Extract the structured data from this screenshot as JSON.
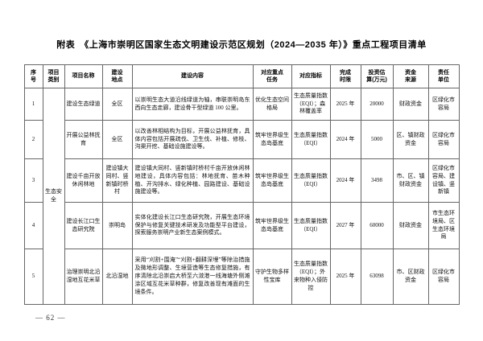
{
  "page": {
    "title": "附表　《上海市崇明区国家生态文明建设示范区规划（2024—2035 年）》重点工程项目清单",
    "page_number": "— 62 —"
  },
  "table": {
    "headers": [
      "序\n号",
      "项目\n类别",
      "项目名称",
      "建设\n地点",
      "建设内容",
      "对应重点\n任务",
      "对应指标",
      "完成\n时限",
      "投资估\n算(万元)",
      "资金\n来源",
      "责任\n单位"
    ],
    "category": "生态安全",
    "rows": [
      {
        "seq": "1",
        "name": "建设生态绿道",
        "location": "全区",
        "content": "以崇明生态大道沿线绿道为轴，串联崇明岛东西向生态走廊，建设骨干型绿道 100 公里。",
        "task": "优化生态空间格局",
        "indicator": "生态质量指数（EQI）；森林覆盖率",
        "deadline": "2025 年",
        "investment": "20000",
        "funding": "财政资金",
        "responsible": "区绿化市容局"
      },
      {
        "seq": "2",
        "name": "开展公益林抚育",
        "location": "全区",
        "content": "以改善林相结构为目标，开展公益林抚育，具体内容包括开展疏伐、卫生伐、补植、修枝、沟渠开挖、基础设施建设等。",
        "task": "筑牢世界级生态岛基底",
        "indicator": "生态质量指数（EQI）",
        "deadline": "2024 年",
        "investment": "5000",
        "funding": "区、镇财政资金",
        "responsible": "区绿化市容局"
      },
      {
        "seq": "3",
        "name": "建设千亩开放休闲林地",
        "location": "建设镇大同村、竖新镇时桥村",
        "content": "建设镇大同村、竖新镇时桥村千亩开放休闲林地建设，具体内容包括：林地抚育、苗木种植、开沟排水、绿化种植、园路建设、基础设施建设等。",
        "task": "筑牢世界级生态岛基底",
        "indicator": "生态质量指数（EQI）",
        "deadline": "2024 年",
        "investment": "3498",
        "funding": "市、区、镇财政资金",
        "responsible": "区绿化市容局、建设镇、竖新镇"
      },
      {
        "seq": "4",
        "name": "建设长江口生态研究院",
        "location": "崇明岛",
        "content": "实体化建设长江口生态研究院，开展生态环境保护与修复关键技术研发及功能型平台建设，探索服务崇明产业新生态案例模式。",
        "task": "筑牢世界级生态岛基底",
        "indicator": "生态质量指数（EQI）",
        "deadline": "2027 年",
        "investment": "60000",
        "funding": "财政资金",
        "responsible": "市生态环境局、区生态环境局"
      },
      {
        "seq": "5",
        "name": "治理崇明北沿湿地互花米草",
        "location": "北沿湿地",
        "content": "采用“刈割+围淹”“刈割+翻耕深埋”等除治措施及微地形调整、生境营造等生态修复措施，有序清除北沿崇启大桥至六滧港一线海塘外侧滩涂区域互花米草种群，修复改善现有滩面的生境条件。",
        "task": "守护生物多样性宝库",
        "indicator": "生态质量指数（EQI）；外来物种入侵防控",
        "deadline": "2025 年",
        "investment": "63098",
        "funding": "市、区财政资金",
        "responsible": "区绿化市容局"
      }
    ]
  }
}
